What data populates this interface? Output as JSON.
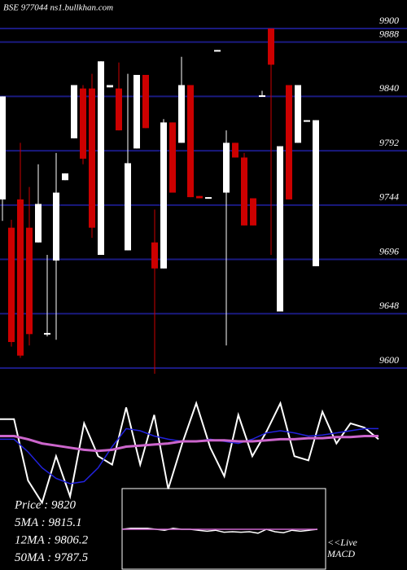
{
  "chart_data": [
    {
      "type": "candlestick",
      "title": "BSE 977044  ns1.bullkhan.com",
      "open": [
        9749,
        9724,
        9749,
        9724,
        9711,
        9630,
        9695,
        9766,
        9803,
        9847,
        9847,
        9700,
        9848,
        9847,
        9704,
        9794,
        9859,
        9711,
        9688,
        9817,
        9799,
        9850,
        9752,
        9750,
        9880,
        9755,
        9799,
        9786,
        9750,
        9840,
        9900,
        9650,
        9850,
        9799,
        9818,
        9690
      ],
      "high": [
        9840,
        9731,
        9799,
        9760,
        9780,
        9700,
        9790,
        9772,
        9850,
        9850,
        9860,
        9871,
        9850,
        9870,
        9860,
        9859,
        9859,
        9740,
        9820,
        9817,
        9875,
        9850,
        9752,
        9751,
        9881,
        9810,
        9799,
        9790,
        9750,
        9845,
        9900,
        9796,
        9850,
        9850,
        9819,
        9819
      ],
      "low": [
        9730,
        9619,
        9609,
        9620,
        9711,
        9628,
        9625,
        9766,
        9803,
        9780,
        9715,
        9700,
        9848,
        9810,
        9704,
        9794,
        9812,
        9595,
        9688,
        9755,
        9799,
        9751,
        9750,
        9750,
        9880,
        9620,
        9786,
        9726,
        9726,
        9840,
        9700,
        9650,
        9749,
        9799,
        9818,
        9690
      ],
      "close": [
        9840,
        9623,
        9611,
        9630,
        9745,
        9631,
        9755,
        9772,
        9850,
        9785,
        9724,
        9871,
        9850,
        9810,
        9781,
        9859,
        9812,
        9688,
        9817,
        9755,
        9850,
        9751,
        9750,
        9751,
        9881,
        9799,
        9786,
        9726,
        9726,
        9841,
        9868,
        9796,
        9749,
        9850,
        9819,
        9819
      ],
      "up_color": "#ffffff",
      "down_color": "#cc0000",
      "grid_color": "#1a1a80",
      "ylim": [
        9600,
        9900
      ],
      "yticks": [
        9900,
        9888,
        9840,
        9792,
        9744,
        9696,
        9648,
        9600
      ],
      "grid": true,
      "info": [
        "Price   : 9820",
        "5MA : 9815.1",
        "12MA : 9806.2",
        "50MA : 9787.5"
      ]
    },
    {
      "type": "line",
      "ylim": [
        0,
        100
      ],
      "series": [
        {
          "color": "#ffffff",
          "values": [
            81,
            81,
            23,
            2,
            46,
            8,
            77,
            46,
            38,
            92,
            38,
            85,
            15,
            58,
            96,
            54,
            27,
            85,
            46,
            69,
            96,
            46,
            42,
            88,
            58,
            77,
            73,
            62
          ]
        },
        {
          "color": "#2222dd",
          "values": [
            62,
            62,
            50,
            35,
            25,
            20,
            22,
            35,
            55,
            72,
            70,
            65,
            62,
            60,
            60,
            62,
            60,
            58,
            62,
            68,
            70,
            68,
            65,
            66,
            68,
            70,
            72,
            72
          ]
        },
        {
          "color": "#cc66cc",
          "values": [
            65,
            65,
            62,
            58,
            56,
            54,
            52,
            51,
            52,
            55,
            56,
            57,
            58,
            60,
            60,
            61,
            61,
            60,
            60,
            61,
            62,
            62,
            63,
            63,
            64,
            64,
            65,
            65
          ]
        }
      ]
    },
    {
      "type": "line",
      "label": "<<Live",
      "title": "MACD",
      "ylim": [
        0,
        100
      ],
      "series": [
        {
          "color": "#ffffff",
          "values": [
            50,
            52,
            52,
            52,
            50,
            48,
            52,
            50,
            50,
            48,
            46,
            48,
            44,
            45,
            44,
            45,
            42,
            50,
            45,
            43,
            48,
            46,
            48,
            50
          ]
        },
        {
          "color": "#cc66cc",
          "values": [
            50,
            50,
            50,
            50,
            50,
            50,
            50,
            50,
            50,
            50,
            50,
            50,
            50,
            50,
            50,
            50,
            50,
            50,
            50,
            50,
            50,
            50,
            50,
            50
          ]
        }
      ]
    }
  ]
}
